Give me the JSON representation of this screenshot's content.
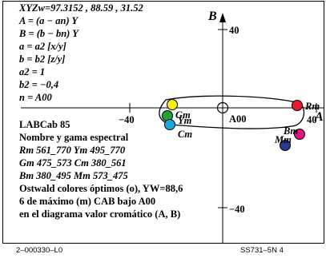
{
  "header": {
    "xyz_line": "XYZw=97.3152 , 88.59 , 31.52",
    "formula_a": "A = (a − an) Y",
    "formula_b": "B = (b − bn) Y",
    "formula_a2": "a = a2 [x/y]",
    "formula_b2": "b = b2 [z/y]",
    "a2_value": "a2 = 1",
    "b2_value": "b2 = −0,4",
    "n_value": "n = A00"
  },
  "info": {
    "labcab": "LABCab 85",
    "spectrum_title": "Nombre y gama espectral",
    "rm_ym": "Rm 561_770   Ym 495_770",
    "gm_cm": "Gm 475_573   Cm 380_561",
    "bm_mm": "Bm 380_495   Mm 573_475",
    "ostwald": "Ostwald colores óptimos (o), YW=88,6",
    "max_line": "6 de máximo (m) CAB bajo A00",
    "diagram_line": "en el diagrama valor cromático (A, B)"
  },
  "axes": {
    "b_axis_label": "B",
    "a_axis_label": "A",
    "tick_40_top": "40",
    "tick_minus40_bottom": "−40",
    "tick_minus40_left": "−40",
    "tick_40_right": "40",
    "center_label": "A00"
  },
  "points": {
    "rm_label": "Rm",
    "ym_label": "Ym",
    "gm_label": "Gm",
    "cm_label": "Cm",
    "bm_label": "Bm",
    "mm_label": "Mm",
    "colors": {
      "red": "#e8192c",
      "yellow": "#f5ee14",
      "green": "#1ea53a",
      "cyan": "#18a8dc",
      "blue": "#2a3a8c",
      "magenta": "#e0157f"
    }
  },
  "footer": {
    "left_code": "2–000330–L0",
    "right_code": "SS731–5N 4"
  }
}
